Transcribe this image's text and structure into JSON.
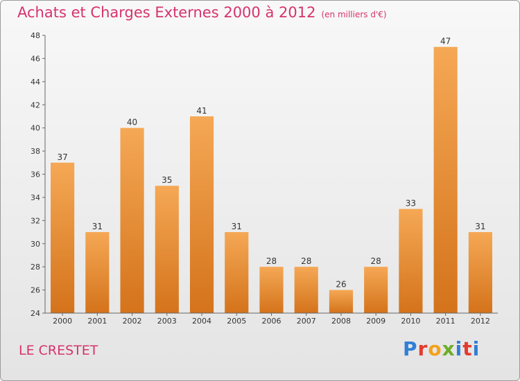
{
  "title": "Achats et Charges Externes 2000 à 2012",
  "unit": "(en milliers d'€)",
  "city": "LE CRESTET",
  "logo": "Proxiti",
  "colors": {
    "bar_light": "#f5a855",
    "bar_dark": "#d4731b",
    "title": "#d6336c",
    "logo": [
      "#2e7fd6",
      "#e23b2e",
      "#f2a21a",
      "#6cae28",
      "#2e7fd6",
      "#e23b2e",
      "#2e7fd6"
    ]
  },
  "chart_data": {
    "type": "bar",
    "categories": [
      "2000",
      "2001",
      "2002",
      "2003",
      "2004",
      "2005",
      "2006",
      "2007",
      "2008",
      "2009",
      "2010",
      "2011",
      "2012"
    ],
    "values": [
      37,
      31,
      40,
      35,
      41,
      31,
      28,
      28,
      26,
      28,
      33,
      47,
      31
    ],
    "ylim": [
      24,
      48
    ],
    "yticks": [
      24,
      26,
      28,
      30,
      32,
      34,
      36,
      38,
      40,
      42,
      44,
      46,
      48
    ],
    "grid": false,
    "data_labels": true
  }
}
